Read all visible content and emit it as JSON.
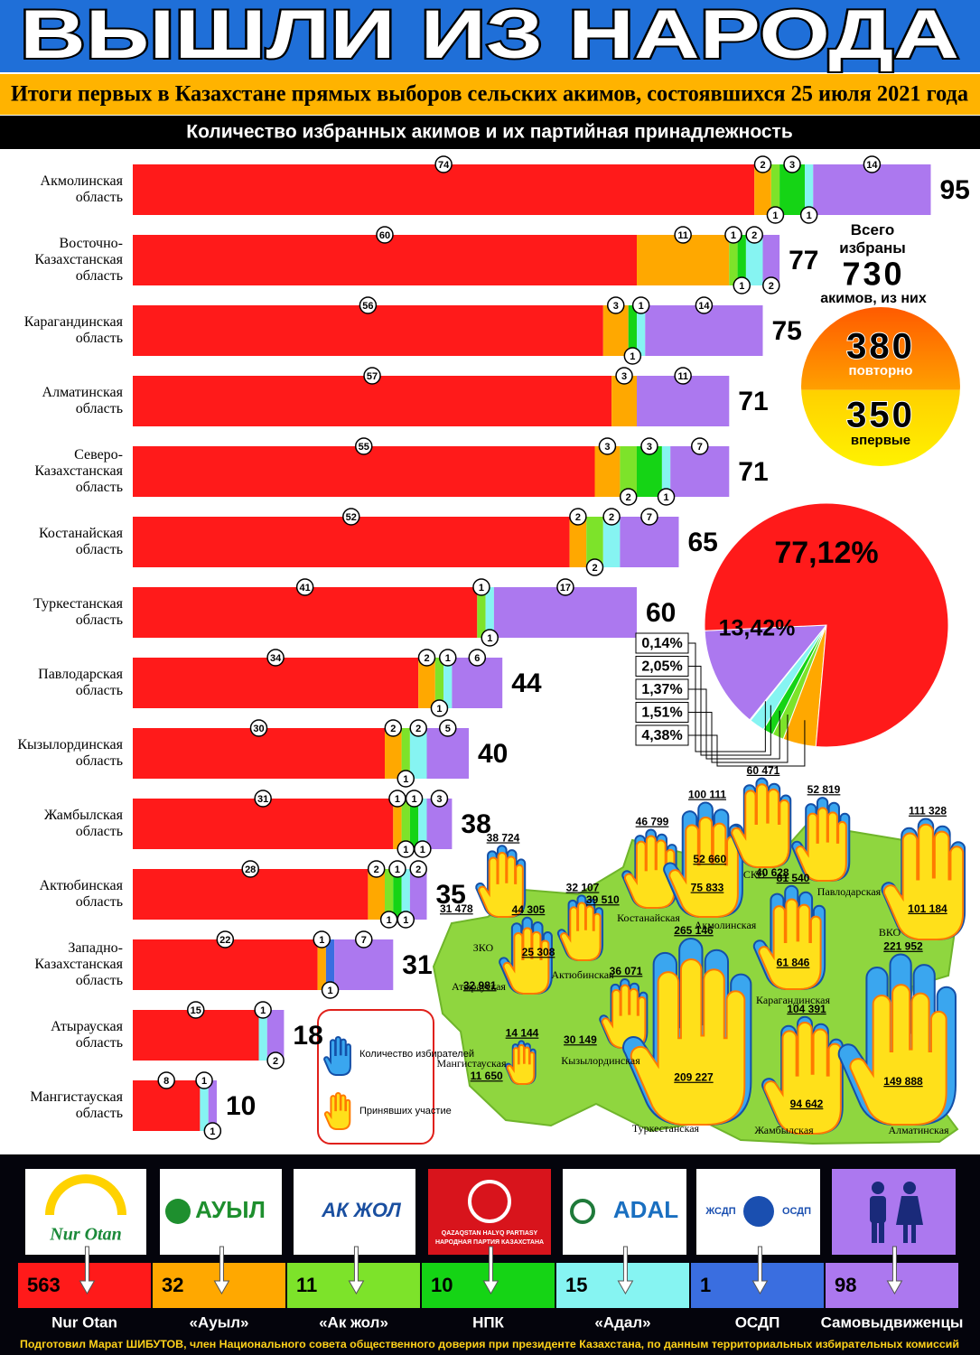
{
  "header": {
    "title": "ВЫШЛИ ИЗ НАРОДА",
    "subtitle": "Итоги первых в Казахстане прямых выборов сельских акимов, состоявшихся 25 июля 2021 года"
  },
  "chart_data": [
    {
      "type": "bar",
      "orientation": "horizontal",
      "stacked": true,
      "title": "Количество избранных акимов и их партийная принадлежность",
      "categories": [
        "Акмолинская область",
        "Восточно-Казахстанская область",
        "Карагандинская область",
        "Алматинская область",
        "Северо-Казахстанская область",
        "Костанайская область",
        "Туркестанская область",
        "Павлодарская область",
        "Кызылординская область",
        "Жамбылская область",
        "Актюбинская область",
        "Западно-Казахстанская область",
        "Атырауская область",
        "Мангистауская область"
      ],
      "series": [
        {
          "name": "Nur Otan",
          "color": "#ff1a1a",
          "values": [
            74,
            60,
            56,
            57,
            55,
            52,
            41,
            34,
            30,
            31,
            28,
            22,
            15,
            8
          ]
        },
        {
          "name": "«Ауыл»",
          "color": "#ffa800",
          "values": [
            2,
            11,
            3,
            3,
            3,
            2,
            0,
            2,
            2,
            1,
            2,
            1,
            0,
            0
          ]
        },
        {
          "name": "«Ак жол»",
          "color": "#7de32a",
          "values": [
            1,
            1,
            0,
            0,
            2,
            2,
            1,
            1,
            1,
            1,
            1,
            0,
            0,
            0
          ]
        },
        {
          "name": "НПК",
          "color": "#15d415",
          "values": [
            3,
            1,
            1,
            0,
            3,
            0,
            0,
            0,
            0,
            1,
            1,
            0,
            0,
            0
          ]
        },
        {
          "name": "«Адал»",
          "color": "#86f4f2",
          "values": [
            1,
            2,
            1,
            0,
            1,
            2,
            1,
            1,
            2,
            1,
            1,
            0,
            1,
            1
          ]
        },
        {
          "name": "ОСДП",
          "color": "#3a6ee0",
          "values": [
            0,
            0,
            0,
            0,
            0,
            0,
            0,
            0,
            0,
            0,
            0,
            1,
            0,
            0
          ]
        },
        {
          "name": "Самовыдвиженцы",
          "color": "#ac78ef",
          "values": [
            14,
            2,
            14,
            11,
            7,
            7,
            17,
            6,
            5,
            3,
            2,
            7,
            2,
            1
          ]
        }
      ],
      "totals": [
        95,
        77,
        75,
        71,
        71,
        65,
        60,
        44,
        40,
        38,
        35,
        31,
        18,
        10
      ],
      "series_totals": [
        563,
        32,
        11,
        10,
        15,
        1,
        98
      ]
    },
    {
      "type": "pie",
      "values": [
        77.12,
        4.38,
        1.51,
        1.37,
        2.05,
        0.14,
        13.42
      ],
      "value_labels": [
        "77,12%",
        "4,38%",
        "1,51%",
        "1,37%",
        "2,05%",
        "0,14%",
        "13,42%"
      ],
      "colors": [
        "#ff1a1a",
        "#ffa800",
        "#7de32a",
        "#15d415",
        "#86f4f2",
        "#3a6ee0",
        "#ac78ef"
      ]
    }
  ],
  "summary": {
    "caption_top": "Всего избраны",
    "total": 730,
    "caption_bottom": "акимов, из них",
    "repeat": 380,
    "repeat_label": "повторно",
    "first": 350,
    "first_label": "впервые"
  },
  "map": {
    "legend": [
      "Количество избирателей",
      "Принявших участие"
    ],
    "regions": [
      {
        "name": "ЗКО",
        "voters": 38724,
        "voters_label": "38 724",
        "turnout": 31478,
        "turnout_label": "31 478"
      },
      {
        "name": "Атырауская",
        "voters": 44305,
        "voters_label": "44 305",
        "turnout": 32981,
        "turnout_label": "32 981"
      },
      {
        "name": "Актюбинская",
        "voters": 32107,
        "voters_label": "32 107",
        "turnout": 25308,
        "turnout_label": "25 308"
      },
      {
        "name": "Мангистауская",
        "voters": 14144,
        "voters_label": "14 144",
        "turnout": 11650,
        "turnout_label": "11 650"
      },
      {
        "name": "Кызылординская",
        "voters": 36071,
        "voters_label": "36 071",
        "turnout": 30149,
        "turnout_label": "30 149"
      },
      {
        "name": "Костанайская",
        "voters": 46799,
        "voters_label": "46 799",
        "turnout": 39510,
        "turnout_label": "39 510"
      },
      {
        "name": "Акмолинская",
        "voters": 100111,
        "voters_label": "100 111",
        "turnout": 75833,
        "turnout_label": "75 833"
      },
      {
        "name": "СКО",
        "voters": 60471,
        "voters_label": "60 471",
        "turnout": 52660,
        "turnout_label": "52 660"
      },
      {
        "name": "Павлодарская",
        "voters": 52819,
        "voters_label": "52 819",
        "turnout": 40628,
        "turnout_label": "40 628"
      },
      {
        "name": "ВКО",
        "voters": 111328,
        "voters_label": "111 328",
        "turnout": 101184,
        "turnout_label": "101 184"
      },
      {
        "name": "Карагандинская",
        "voters": 81540,
        "voters_label": "81 540",
        "turnout": 61846,
        "turnout_label": "61 846"
      },
      {
        "name": "Туркестанская",
        "voters": 265146,
        "voters_label": "265 146",
        "turnout": 209227,
        "turnout_label": "209 227"
      },
      {
        "name": "Жамбылская",
        "voters": 104391,
        "voters_label": "104 391",
        "turnout": 94642,
        "turnout_label": "94 642"
      },
      {
        "name": "Алматинская",
        "voters": 221952,
        "voters_label": "221 952",
        "turnout": 149888,
        "turnout_label": "149 888"
      }
    ]
  },
  "logos": [
    "Nur Otan",
    "АУЫЛ",
    "АК ЖОЛ",
    "QAZAQSTAN HALYQ PARTIASY",
    "НАРОДНАЯ ПАРТИЯ КАЗАХСТАНА",
    "ADAL",
    "ЖСДП",
    "ОСДП"
  ],
  "footer": "Подготовил Марат ШИБУТОВ, член Национального совета общественного доверия при президенте Казахстана, по данным территориальных избирательных комиссий"
}
